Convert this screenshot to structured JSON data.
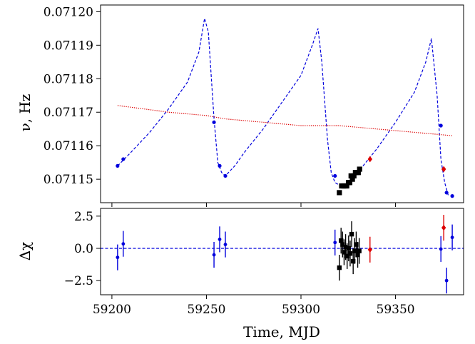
{
  "chart_data": [
    {
      "type": "line",
      "panel": "top",
      "ylabel": "ν, Hz",
      "xlim": [
        59194,
        59386
      ],
      "ylim": [
        0.071143,
        0.071202
      ],
      "yticks": [
        0.07115,
        0.07116,
        0.07117,
        0.07118,
        0.07119,
        0.0712
      ],
      "ytick_labels": [
        "0.07115",
        "0.07116",
        "0.07117",
        "0.07118",
        "0.07119",
        "0.07120"
      ],
      "grid": false,
      "series": [
        {
          "style": "dashed-line",
          "color": "#0000dd",
          "x": [
            59203,
            59210,
            59220,
            59230,
            59240,
            59246,
            59249,
            59251,
            59254,
            59256,
            59258,
            59260,
            59265,
            59270,
            59280,
            59290,
            59300,
            59306,
            59309,
            59311,
            59314,
            59316,
            59318,
            59321,
            59326,
            59330,
            59340,
            59350,
            59360,
            59366,
            59369,
            59372,
            59374,
            59376,
            59378
          ],
          "y": [
            0.071154,
            0.071158,
            0.071164,
            0.071171,
            0.071179,
            0.071188,
            0.071198,
            0.071194,
            0.071168,
            0.071155,
            0.071152,
            0.071151,
            0.071154,
            0.071158,
            0.071165,
            0.071173,
            0.071181,
            0.07119,
            0.071195,
            0.071185,
            0.071162,
            0.071152,
            0.071149,
            0.071148,
            0.071149,
            0.071152,
            0.071159,
            0.071167,
            0.071176,
            0.071185,
            0.071192,
            0.071175,
            0.071156,
            0.071149,
            0.071145
          ]
        },
        {
          "style": "dotted-line",
          "color": "#dd0000",
          "x": [
            59203,
            59230,
            59250,
            59260,
            59280,
            59300,
            59320,
            59340,
            59360,
            59380
          ],
          "y": [
            0.071172,
            0.07117,
            0.071169,
            0.071168,
            0.071167,
            0.071166,
            0.071166,
            0.071165,
            0.071164,
            0.071163
          ]
        },
        {
          "style": "points",
          "marker": "circle",
          "color": "#0000dd",
          "x": [
            59203,
            59206,
            59254,
            59257,
            59260,
            59318,
            59374,
            59377,
            59380
          ],
          "y": [
            0.071154,
            0.071156,
            0.071167,
            0.071154,
            0.071151,
            0.071151,
            0.071166,
            0.071146,
            0.071145
          ]
        },
        {
          "style": "points",
          "marker": "square",
          "color": "#000000",
          "x": [
            59320.3,
            59321.5,
            59322.4,
            59323.3,
            59324.2,
            59325.1,
            59325.8,
            59326.5,
            59327.2,
            59328,
            59328.8,
            59329.6,
            59330.3,
            59331
          ],
          "y": [
            0.071146,
            0.071148,
            0.071148,
            0.071148,
            0.071148,
            0.071149,
            0.071149,
            0.071151,
            0.07115,
            0.071151,
            0.071152,
            0.071152,
            0.071152,
            0.071153
          ]
        },
        {
          "style": "points",
          "marker": "diamond",
          "color": "#dd0000",
          "x": [
            59336.5,
            59375.5
          ],
          "y": [
            0.071156,
            0.071153
          ]
        }
      ]
    },
    {
      "type": "scatter",
      "panel": "bottom",
      "xlabel": "Time, MJD",
      "ylabel": "Δχ",
      "xlim": [
        59194,
        59386
      ],
      "ylim": [
        -3.6,
        3.1
      ],
      "xticks": [
        59200,
        59250,
        59300,
        59350
      ],
      "xtick_labels": [
        "59200",
        "59250",
        "59300",
        "59350"
      ],
      "yticks": [
        -2.5,
        0,
        2.5
      ],
      "ytick_labels": [
        "−2.5",
        "0.0",
        "2.5"
      ],
      "reference_line": {
        "y": 0,
        "style": "dashed",
        "color": "#0000dd"
      },
      "series": [
        {
          "marker": "circle",
          "color": "#0000dd",
          "x": [
            59203,
            59206,
            59254,
            59257,
            59260,
            59318,
            59374,
            59377,
            59380
          ],
          "y": [
            -0.7,
            0.35,
            -0.5,
            0.7,
            0.3,
            0.45,
            -0.05,
            -2.5,
            0.85
          ],
          "err": [
            1.0,
            1.0,
            1.0,
            1.0,
            1.0,
            1.0,
            1.0,
            1.0,
            1.0
          ]
        },
        {
          "marker": "square",
          "color": "#000000",
          "x": [
            59320.3,
            59321.2,
            59322,
            59322.8,
            59323.6,
            59324.4,
            59325.2,
            59326,
            59326.8,
            59327.6,
            59328.4,
            59329.2,
            59330,
            59330.8
          ],
          "y": [
            -1.5,
            0.6,
            0.3,
            -0.3,
            0.1,
            -0.6,
            0.0,
            -0.4,
            1.1,
            -1.0,
            -0.2,
            0.3,
            -0.5,
            -0.2
          ],
          "err": [
            1.0,
            1.0,
            1.0,
            1.0,
            1.0,
            1.0,
            1.0,
            1.0,
            1.0,
            1.0,
            1.0,
            1.0,
            1.0,
            1.0
          ]
        },
        {
          "marker": "diamond",
          "color": "#dd0000",
          "x": [
            59336.5,
            59375.5
          ],
          "y": [
            -0.1,
            1.6
          ],
          "err": [
            1.0,
            1.0
          ]
        }
      ]
    }
  ]
}
